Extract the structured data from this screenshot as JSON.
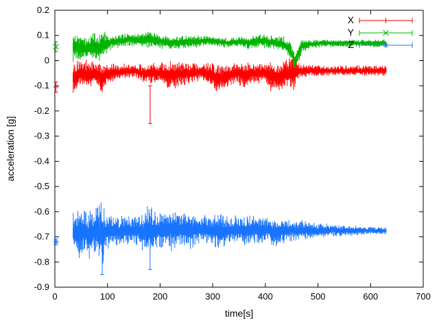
{
  "figure": {
    "background": "#ffffff",
    "axis_color": "#000000",
    "text_color": "#000000"
  },
  "chart_data": {
    "type": "scatter",
    "style": "errorbars",
    "title": "",
    "xlabel": "time[s]",
    "ylabel": "acceleration [g]",
    "xlim": [
      0,
      700
    ],
    "ylim": [
      -0.9,
      0.2
    ],
    "xticks": [
      0,
      100,
      200,
      300,
      400,
      500,
      600,
      700
    ],
    "yticks": [
      -0.9,
      -0.8,
      -0.7,
      -0.6,
      -0.5,
      -0.4,
      -0.3,
      -0.2,
      -0.1,
      0,
      0.1,
      0.2
    ],
    "grid": false,
    "legend_position": "top-right",
    "band_format": "[time_s, mean_g, half_spread_g]",
    "series": [
      {
        "name": "X",
        "color": "#ff0000",
        "marker": "plus",
        "seed": 101,
        "start_point": {
          "t": 2,
          "y": -0.105,
          "err": 0.02
        },
        "outliers": [
          {
            "t": 181,
            "y": -0.175,
            "err": 0.075
          }
        ],
        "band": [
          [
            35,
            -0.07,
            0.05
          ],
          [
            45,
            -0.05,
            0.045
          ],
          [
            60,
            -0.06,
            0.05
          ],
          [
            75,
            -0.05,
            0.035
          ],
          [
            90,
            -0.07,
            0.05
          ],
          [
            100,
            -0.05,
            0.03
          ],
          [
            120,
            -0.045,
            0.025
          ],
          [
            150,
            -0.04,
            0.02
          ],
          [
            170,
            -0.05,
            0.03
          ],
          [
            185,
            -0.05,
            0.035
          ],
          [
            200,
            -0.05,
            0.03
          ],
          [
            215,
            -0.06,
            0.045
          ],
          [
            235,
            -0.055,
            0.04
          ],
          [
            255,
            -0.05,
            0.035
          ],
          [
            275,
            -0.045,
            0.025
          ],
          [
            300,
            -0.06,
            0.04
          ],
          [
            315,
            -0.07,
            0.045
          ],
          [
            330,
            -0.055,
            0.035
          ],
          [
            345,
            -0.05,
            0.03
          ],
          [
            360,
            -0.06,
            0.04
          ],
          [
            375,
            -0.05,
            0.03
          ],
          [
            395,
            -0.045,
            0.03
          ],
          [
            410,
            -0.06,
            0.045
          ],
          [
            425,
            -0.07,
            0.05
          ],
          [
            440,
            -0.05,
            0.04
          ],
          [
            455,
            -0.05,
            0.055
          ],
          [
            465,
            -0.04,
            0.02
          ],
          [
            490,
            -0.04,
            0.018
          ],
          [
            520,
            -0.04,
            0.015
          ],
          [
            560,
            -0.04,
            0.015
          ],
          [
            600,
            -0.04,
            0.015
          ],
          [
            630,
            -0.04,
            0.015
          ]
        ]
      },
      {
        "name": "Y",
        "color": "#00b400",
        "marker": "cross",
        "seed": 202,
        "start_point": {
          "t": 2,
          "y": 0.055,
          "err": 0.02
        },
        "outliers": [],
        "band": [
          [
            35,
            0.06,
            0.05
          ],
          [
            45,
            0.05,
            0.04
          ],
          [
            55,
            0.045,
            0.035
          ],
          [
            70,
            0.055,
            0.04
          ],
          [
            85,
            0.05,
            0.04
          ],
          [
            95,
            0.065,
            0.035
          ],
          [
            110,
            0.075,
            0.02
          ],
          [
            130,
            0.08,
            0.02
          ],
          [
            145,
            0.085,
            0.02
          ],
          [
            160,
            0.08,
            0.02
          ],
          [
            175,
            0.085,
            0.025
          ],
          [
            190,
            0.08,
            0.025
          ],
          [
            205,
            0.075,
            0.02
          ],
          [
            230,
            0.07,
            0.02
          ],
          [
            250,
            0.075,
            0.02
          ],
          [
            270,
            0.075,
            0.018
          ],
          [
            290,
            0.08,
            0.015
          ],
          [
            310,
            0.075,
            0.015
          ],
          [
            330,
            0.07,
            0.015
          ],
          [
            350,
            0.075,
            0.015
          ],
          [
            370,
            0.07,
            0.02
          ],
          [
            390,
            0.08,
            0.02
          ],
          [
            405,
            0.075,
            0.02
          ],
          [
            420,
            0.07,
            0.02
          ],
          [
            435,
            0.065,
            0.025
          ],
          [
            448,
            0.04,
            0.03
          ],
          [
            456,
            0.0,
            0.025
          ],
          [
            463,
            0.03,
            0.03
          ],
          [
            470,
            0.06,
            0.02
          ],
          [
            485,
            0.065,
            0.015
          ],
          [
            510,
            0.07,
            0.012
          ],
          [
            550,
            0.07,
            0.012
          ],
          [
            590,
            0.07,
            0.012
          ],
          [
            630,
            0.07,
            0.012
          ]
        ]
      },
      {
        "name": "Z",
        "color": "#1874ff",
        "marker": "star",
        "seed": 303,
        "start_point": {
          "t": 2,
          "y": -0.72,
          "err": 0.012
        },
        "outliers": [
          {
            "t": 90,
            "y": -0.75,
            "err": 0.1
          },
          {
            "t": 181,
            "y": -0.74,
            "err": 0.09
          }
        ],
        "band": [
          [
            35,
            -0.68,
            0.06
          ],
          [
            45,
            -0.69,
            0.08
          ],
          [
            55,
            -0.68,
            0.07
          ],
          [
            65,
            -0.69,
            0.075
          ],
          [
            75,
            -0.68,
            0.06
          ],
          [
            90,
            -0.69,
            0.1
          ],
          [
            95,
            -0.68,
            0.06
          ],
          [
            110,
            -0.675,
            0.05
          ],
          [
            130,
            -0.675,
            0.045
          ],
          [
            150,
            -0.675,
            0.04
          ],
          [
            165,
            -0.68,
            0.05
          ],
          [
            180,
            -0.68,
            0.085
          ],
          [
            195,
            -0.675,
            0.05
          ],
          [
            210,
            -0.67,
            0.055
          ],
          [
            225,
            -0.675,
            0.065
          ],
          [
            240,
            -0.67,
            0.05
          ],
          [
            255,
            -0.675,
            0.055
          ],
          [
            270,
            -0.675,
            0.045
          ],
          [
            285,
            -0.67,
            0.04
          ],
          [
            300,
            -0.675,
            0.045
          ],
          [
            315,
            -0.68,
            0.055
          ],
          [
            330,
            -0.675,
            0.04
          ],
          [
            345,
            -0.67,
            0.04
          ],
          [
            360,
            -0.675,
            0.045
          ],
          [
            375,
            -0.67,
            0.04
          ],
          [
            390,
            -0.675,
            0.045
          ],
          [
            405,
            -0.67,
            0.04
          ],
          [
            420,
            -0.68,
            0.045
          ],
          [
            435,
            -0.675,
            0.04
          ],
          [
            450,
            -0.675,
            0.03
          ],
          [
            470,
            -0.672,
            0.028
          ],
          [
            490,
            -0.675,
            0.025
          ],
          [
            520,
            -0.674,
            0.02
          ],
          [
            550,
            -0.675,
            0.018
          ],
          [
            580,
            -0.676,
            0.014
          ],
          [
            610,
            -0.675,
            0.012
          ],
          [
            630,
            -0.675,
            0.01
          ]
        ]
      }
    ]
  }
}
